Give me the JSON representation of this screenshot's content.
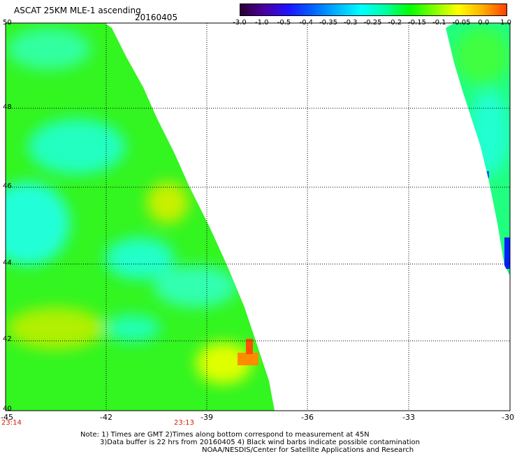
{
  "header": {
    "title": "ASCAT 25KM MLE-1 ascending",
    "date": "20160405"
  },
  "colorbar": {
    "ticks": [
      "-3.0",
      "-1.0",
      "-0.5",
      "-0.4",
      "-0.35",
      "-0.3",
      "-0.25",
      "-0.2",
      "-0.15",
      "-0.1",
      "-0.05",
      "0.0",
      "1.0"
    ],
    "colors": [
      "#2a0033",
      "#4b00a0",
      "#1e14ff",
      "#0064ff",
      "#00b4ff",
      "#00ffff",
      "#00ffa0",
      "#00ff00",
      "#80ff00",
      "#ffff00",
      "#ffb000",
      "#ff4000"
    ]
  },
  "map": {
    "lat_labels": [
      "50",
      "48",
      "46",
      "44",
      "42",
      "40"
    ],
    "lon_labels": [
      "-45",
      "-42",
      "-39",
      "-36",
      "-33",
      "-30"
    ],
    "times": [
      "23:14",
      "23:13"
    ]
  },
  "notes": [
    "Note: 1) Times are GMT 2)Times along bottom correspond to measurement at 45N",
    "3)Data buffer is 22 hrs from 20160405 4) Black wind barbs indicate possible contamination",
    "NOAA/NESDIS/Center for Satellite Applications and Research"
  ]
}
